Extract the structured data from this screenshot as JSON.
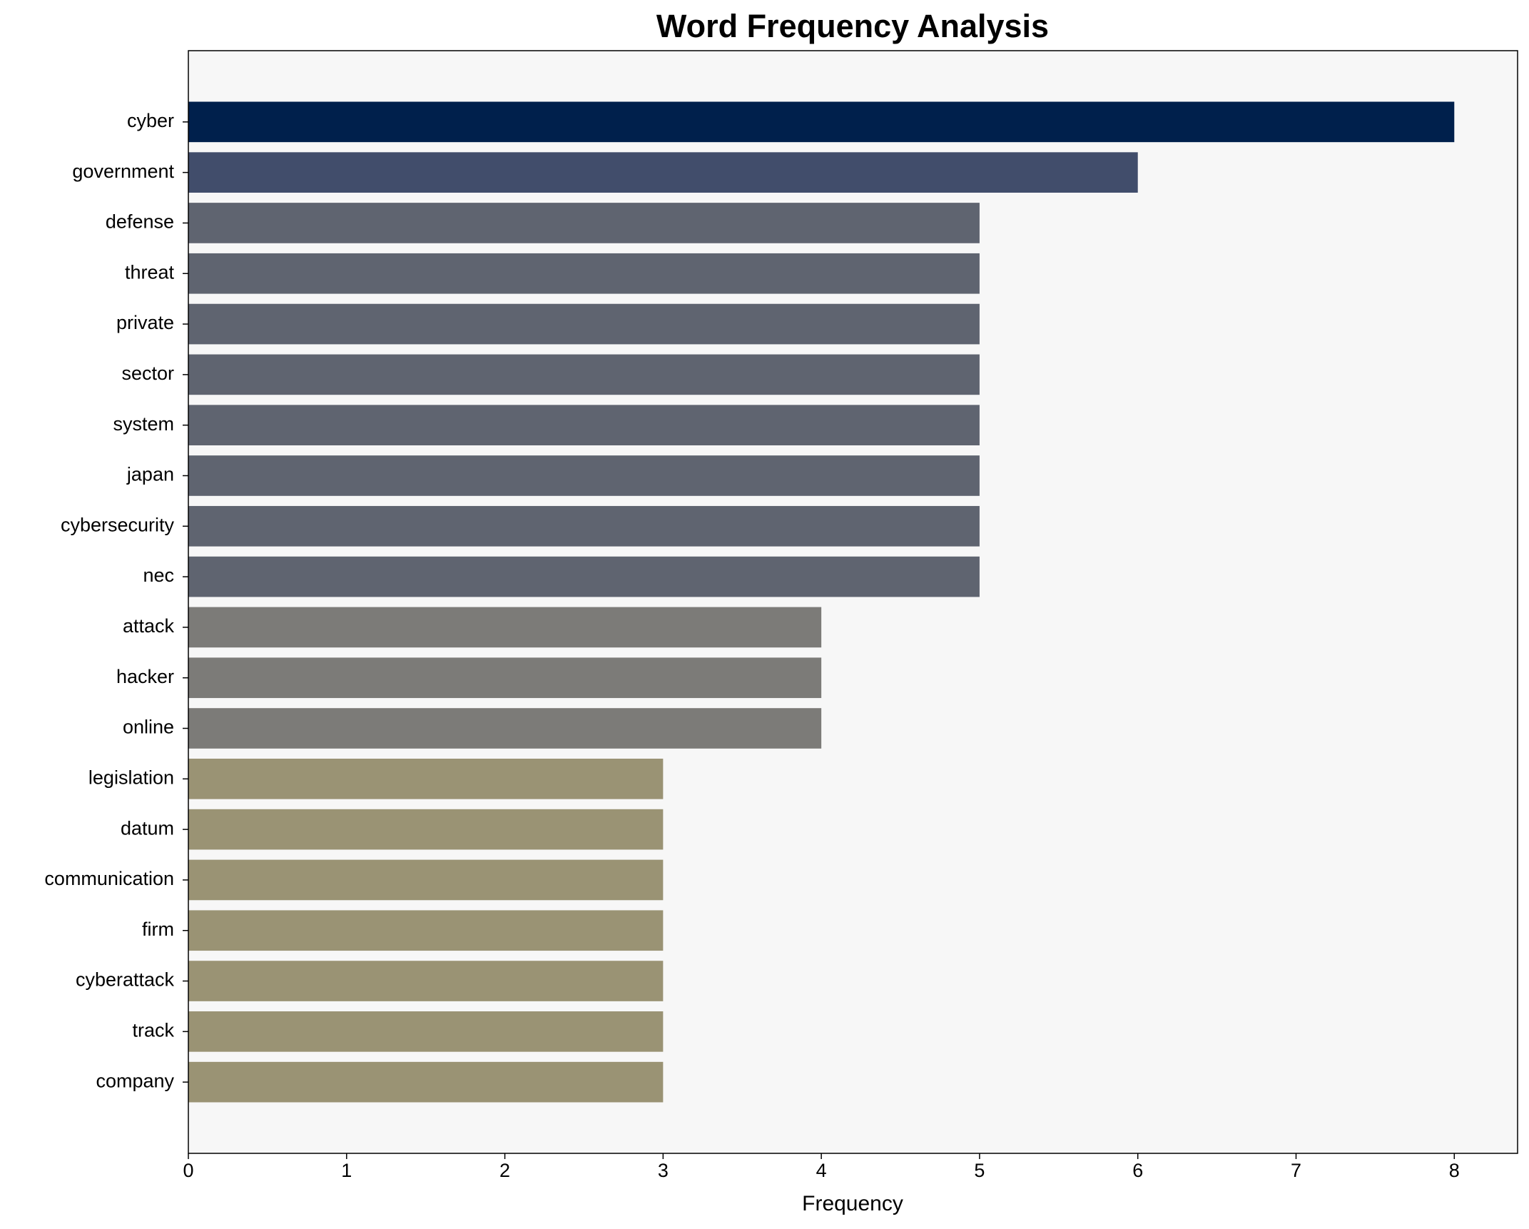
{
  "chart_data": {
    "type": "bar",
    "orientation": "horizontal",
    "title": "Word Frequency Analysis",
    "x_label": "Frequency",
    "categories": [
      "cyber",
      "government",
      "defense",
      "threat",
      "private",
      "sector",
      "system",
      "japan",
      "cybersecurity",
      "nec",
      "attack",
      "hacker",
      "online",
      "legislation",
      "datum",
      "communication",
      "firm",
      "cyberattack",
      "track",
      "company"
    ],
    "values": [
      8,
      6,
      5,
      5,
      5,
      5,
      5,
      5,
      5,
      5,
      4,
      4,
      4,
      3,
      3,
      3,
      3,
      3,
      3,
      3
    ],
    "colors": [
      "#00204c",
      "#414d6b",
      "#5f6470",
      "#5f6470",
      "#5f6470",
      "#5f6470",
      "#5f6470",
      "#5f6470",
      "#5f6470",
      "#5f6470",
      "#7c7b78",
      "#7c7b78",
      "#7c7b78",
      "#9a9374",
      "#9a9374",
      "#9a9374",
      "#9a9374",
      "#9a9374",
      "#9a9374",
      "#9a9374"
    ],
    "xlim": [
      0,
      8.4
    ],
    "xticks": [
      0,
      1,
      2,
      3,
      4,
      5,
      6,
      7,
      8
    ],
    "grid": false
  }
}
